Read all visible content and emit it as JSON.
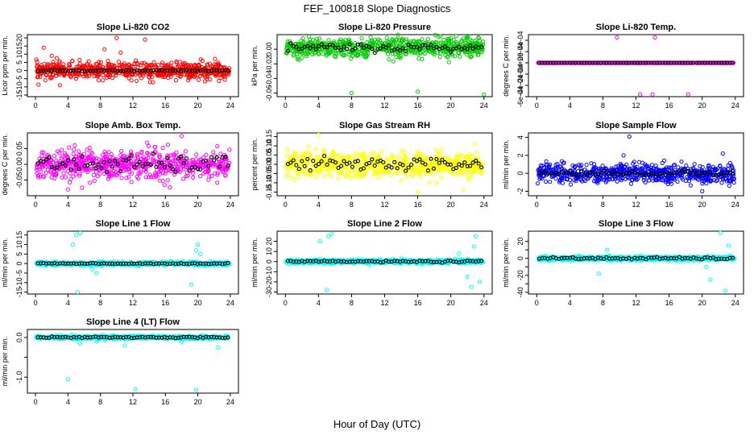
{
  "title": "FEF_100818  Slope Diagnostics",
  "xlabel": "Hour of Day (UTC)",
  "x_ticks": [
    0,
    4,
    8,
    12,
    16,
    20,
    24
  ],
  "chart_data": [
    {
      "type": "scatter",
      "title": "Slope Li-820 CO2",
      "ylabel": "Licor ppm per min.",
      "ylim": [
        -16,
        22
      ],
      "yticks": [
        -15,
        -10,
        -5,
        0,
        5,
        10,
        15,
        20
      ],
      "ytick_labels": [
        "-15",
        "-10",
        "-5",
        "0",
        "5",
        "10",
        "15",
        "20"
      ],
      "color": "#ff0000",
      "spread": 4.5,
      "black_spread": 0.4,
      "outliers": [
        [
          1.0,
          14
        ],
        [
          1.2,
          -6
        ],
        [
          10.0,
          20
        ],
        [
          13.5,
          19
        ],
        [
          2.0,
          9
        ],
        [
          8.5,
          13
        ],
        [
          3.0,
          -9
        ],
        [
          5.0,
          -5
        ],
        [
          10.5,
          11
        ]
      ]
    },
    {
      "type": "scatter",
      "title": "Slope Li-820 Pressure",
      "ylabel": "kPa per min.",
      "ylim": [
        -0.065,
        0.02
      ],
      "yticks": [
        -0.06,
        -0.04,
        -0.02,
        0.0
      ],
      "ytick_labels": [
        "-0.06",
        "-0.04",
        "-0.02",
        "0.00"
      ],
      "color": "#00cc00",
      "spread": 0.012,
      "center": 0.002,
      "black_spread": 0.006,
      "outliers": [
        [
          8.0,
          -0.06
        ],
        [
          16.0,
          -0.058
        ],
        [
          24.0,
          -0.062
        ],
        [
          18.5,
          0.017
        ]
      ]
    },
    {
      "type": "scatter",
      "title": "Slope Li-820 Temp.",
      "ylabel": "degrees C per min.",
      "ylim": [
        -0.0006,
        0.0005
      ],
      "yticks": [
        -0.0006,
        -0.0004,
        -0.0002,
        0.0,
        0.0002,
        0.0004
      ],
      "ytick_labels": [
        "-6e-04",
        "-4e-04",
        "-2e-04",
        "0e+00",
        "2e-04",
        "4e-04"
      ],
      "color": "#ff00ff",
      "spread": 0.0,
      "black_spread": 0.0,
      "outliers": [
        [
          9.7,
          0.00045
        ],
        [
          14.3,
          0.00045
        ],
        [
          12.5,
          -0.00056
        ],
        [
          14.0,
          -0.00056
        ],
        [
          18.3,
          -0.00056
        ]
      ]
    },
    {
      "type": "scatter",
      "title": "Slope Amb. Box Temp.",
      "ylabel": "degrees C per min.",
      "ylim": [
        -0.1,
        0.1
      ],
      "yticks": [
        -0.05,
        0.0,
        0.05
      ],
      "ytick_labels": [
        "-0.05",
        "0.00",
        "0.05"
      ],
      "color": "#ff00ff",
      "spread": 0.04,
      "black_spread": 0.03,
      "outliers": [
        [
          18.0,
          0.09
        ],
        [
          4.0,
          -0.08
        ]
      ]
    },
    {
      "type": "scatter",
      "title": "Slope Gas Stream RH",
      "ylabel": "percent per min.",
      "ylim": [
        -0.17,
        0.17
      ],
      "yticks": [
        -0.15,
        -0.1,
        -0.05,
        0.0,
        0.05,
        0.1,
        0.15
      ],
      "ytick_labels": [
        "-0.15",
        "-0.10",
        "-0.05",
        "0.00",
        "0.05",
        "0.10",
        "0.15"
      ],
      "color": "#ffff00",
      "spread": 0.06,
      "black_spread": 0.04,
      "outliers": [
        [
          4.0,
          0.16
        ],
        [
          16.0,
          -0.15
        ],
        [
          21.5,
          -0.14
        ]
      ]
    },
    {
      "type": "scatter",
      "title": "Slope Sample Flow",
      "ylabel": "ml/min per min.",
      "ylim": [
        -2.5,
        4.5
      ],
      "yticks": [
        -2,
        0,
        2,
        4
      ],
      "ytick_labels": [
        "-2",
        "0",
        "2",
        "4"
      ],
      "color": "#0000ff",
      "spread": 0.9,
      "black_spread": 0.3,
      "outliers": [
        [
          11.2,
          4.1
        ],
        [
          10.5,
          2.0
        ],
        [
          20.0,
          -2.0
        ],
        [
          22.5,
          2.2
        ]
      ]
    },
    {
      "type": "scatter",
      "title": "Slope Line 1 Flow",
      "ylabel": "ml/min per min.",
      "ylim": [
        -16,
        17
      ],
      "yticks": [
        -15,
        -10,
        -5,
        0,
        5,
        10,
        15
      ],
      "ytick_labels": [
        "-15",
        "-10",
        "-5",
        "0",
        "5",
        "10",
        "15"
      ],
      "color": "#00ffff",
      "spread": 0.8,
      "black_spread": 0.3,
      "outliers": [
        [
          5.0,
          15
        ],
        [
          5.5,
          16
        ],
        [
          4.6,
          10
        ],
        [
          5.2,
          -15
        ],
        [
          7.0,
          -3
        ],
        [
          7.5,
          -5
        ],
        [
          19.2,
          -11
        ],
        [
          19.8,
          7
        ],
        [
          20.0,
          10
        ],
        [
          20.3,
          5
        ]
      ]
    },
    {
      "type": "scatter",
      "title": "Slope Line 2 Flow",
      "ylabel": "ml/min per min.",
      "ylim": [
        -32,
        30
      ],
      "yticks": [
        -30,
        -20,
        -10,
        0,
        10,
        20
      ],
      "ytick_labels": [
        "-30",
        "-20",
        "-10",
        "0",
        "10",
        "20"
      ],
      "color": "#00ffff",
      "spread": 1.8,
      "black_spread": 1.0,
      "outliers": [
        [
          4.2,
          20
        ],
        [
          5.2,
          25
        ],
        [
          5.6,
          27
        ],
        [
          5.0,
          -28
        ],
        [
          22.0,
          -15
        ],
        [
          22.5,
          -25
        ],
        [
          23.0,
          25
        ],
        [
          23.5,
          -20
        ],
        [
          21.0,
          8
        ],
        [
          22.8,
          15
        ]
      ]
    },
    {
      "type": "scatter",
      "title": "Slope Line 3 Flow",
      "ylabel": "ml/min per min.",
      "ylim": [
        -42,
        32
      ],
      "yticks": [
        -40,
        -30,
        -20,
        -10,
        0,
        10,
        20
      ],
      "ytick_labels": [
        "-40",
        "",
        "-20",
        "",
        "0",
        "",
        "20"
      ],
      "color": "#00ffff",
      "spread": 2.2,
      "black_spread": 1.5,
      "outliers": [
        [
          22.2,
          30
        ],
        [
          22.8,
          -38
        ],
        [
          21.0,
          -25
        ],
        [
          23.2,
          15
        ],
        [
          7.5,
          -18
        ],
        [
          8.5,
          10
        ],
        [
          20.5,
          -10
        ]
      ]
    },
    {
      "type": "scatter",
      "title": "Slope Line 4 (LT) Flow",
      "ylabel": "ml/min per min.",
      "ylim": [
        -1.4,
        0.2
      ],
      "yticks": [
        -1.0,
        -0.5,
        0.0
      ],
      "ytick_labels": [
        "-1.0",
        "",
        "0.0"
      ],
      "color": "#00ffff",
      "spread": 0.035,
      "black_spread": 0.02,
      "outliers": [
        [
          4.0,
          -1.05
        ],
        [
          12.3,
          -1.3
        ],
        [
          19.8,
          -1.32
        ],
        [
          5.5,
          -0.15
        ],
        [
          11.0,
          -0.2
        ],
        [
          18.0,
          -0.12
        ],
        [
          22.5,
          -0.25
        ],
        [
          20.5,
          0.06
        ],
        [
          7.5,
          -0.1
        ]
      ]
    }
  ]
}
